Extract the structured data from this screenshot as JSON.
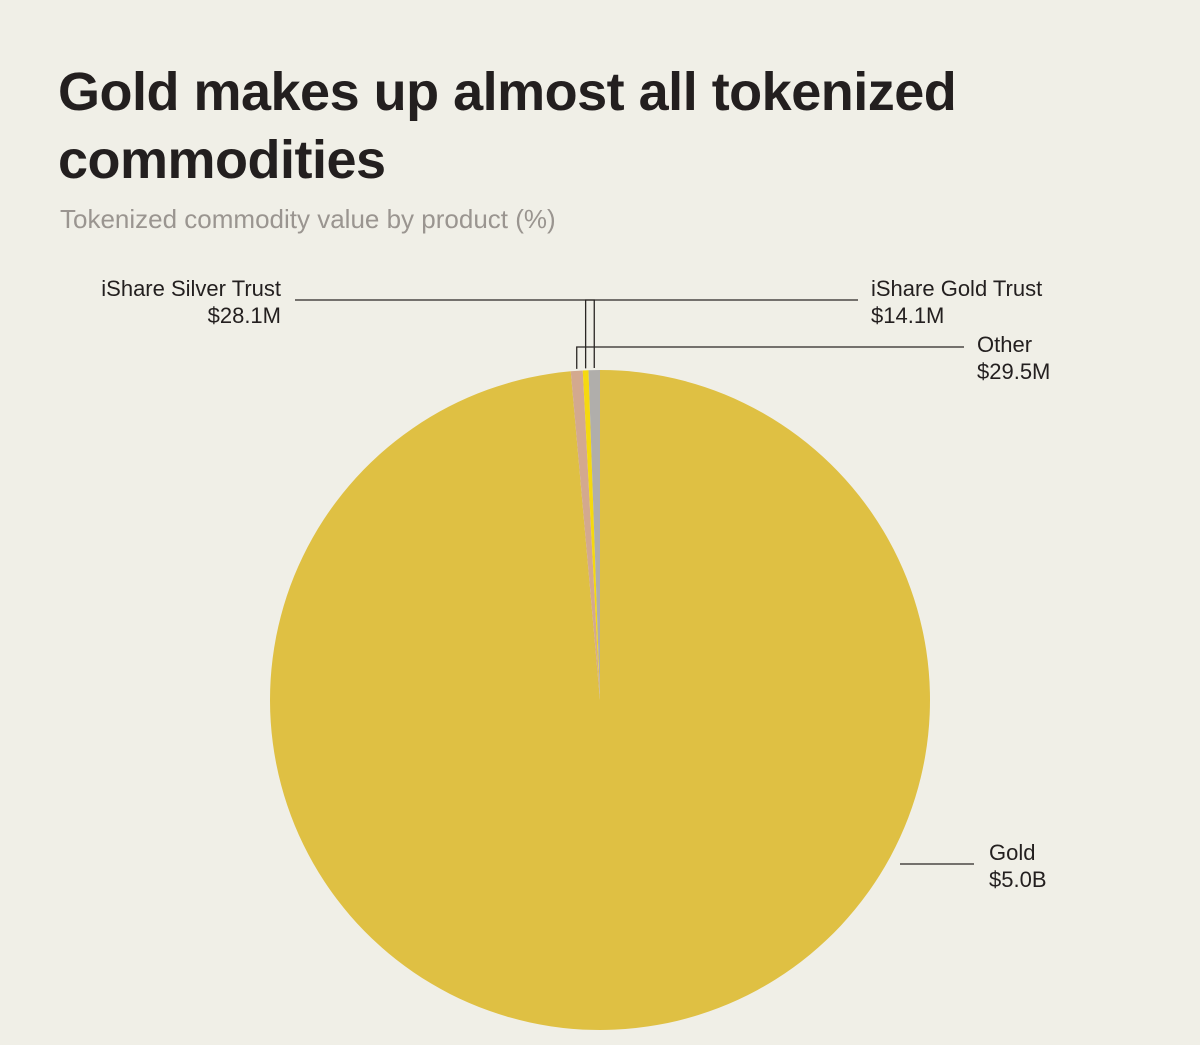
{
  "header": {
    "title": "Gold makes up almost all tokenized commodities",
    "subtitle": "Tokenized commodity value by product (%)"
  },
  "chart_data": {
    "type": "pie",
    "title": "Gold makes up almost all tokenized commodities",
    "subtitle": "Tokenized commodity value by product (%)",
    "start_angle": "12 o'clock",
    "direction": "counterclockwise for small slices after Gold",
    "slices": [
      {
        "name": "Gold",
        "value_label": "$5.0B",
        "value_millions": 5000.0,
        "color": "#dfc043"
      },
      {
        "name": "Other",
        "value_label": "$29.5M",
        "value_millions": 29.5,
        "color": "#d3a98f"
      },
      {
        "name": "iShare Gold Trust",
        "value_label": "$14.1M",
        "value_millions": 14.1,
        "color": "#f5d90f"
      },
      {
        "name": "iShare Silver Trust",
        "value_label": "$28.1M",
        "value_millions": 28.1,
        "color": "#b0aeab"
      }
    ]
  },
  "colors": {
    "background": "#f0efe7",
    "title_text": "#231f1f",
    "subtitle_text": "#9a9590",
    "leader_line": "#2a2624"
  }
}
